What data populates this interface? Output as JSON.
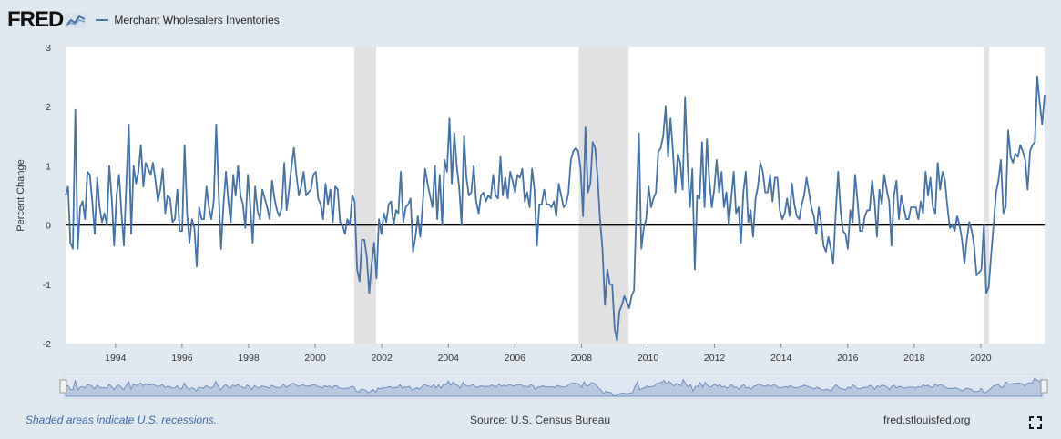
{
  "logo_text": "FRED",
  "legend_label": "Merchant Wholesalers Inventories",
  "footer": {
    "recession_note": "Shaded areas indicate U.S. recessions.",
    "source": "Source: U.S. Census Bureau",
    "site": "fred.stlouisfed.org"
  },
  "colors": {
    "series": "#4572a7",
    "recession": "#e1e1e1",
    "zero_line": "#000000",
    "navigator_fill": "#b7c8e0"
  },
  "chart_data": {
    "type": "line",
    "title": "",
    "xlabel": "",
    "ylabel": "Percent Change",
    "x_start": 1992.5,
    "x_end": 2021.917,
    "xlim": [
      1992.5,
      2021.917
    ],
    "ylim": [
      -2,
      3
    ],
    "y_ticks": [
      "-2",
      "-1",
      "0",
      "1",
      "2",
      "3"
    ],
    "x_ticks": [
      "1994",
      "1996",
      "1998",
      "2000",
      "2002",
      "2004",
      "2006",
      "2008",
      "2010",
      "2012",
      "2014",
      "2016",
      "2018",
      "2020"
    ],
    "recessions": [
      [
        2001.17,
        2001.83
      ],
      [
        2007.92,
        2009.42
      ],
      [
        2020.08,
        2020.25
      ]
    ],
    "series": [
      {
        "name": "Merchant Wholesalers Inventories",
        "values": [
          0.5,
          0.65,
          -0.3,
          -0.4,
          1.95,
          -0.4,
          0.3,
          0.4,
          0.1,
          0.9,
          0.85,
          0.4,
          -0.15,
          0.8,
          0.3,
          0.05,
          0.2,
          0.0,
          1.0,
          0.45,
          -0.35,
          0.5,
          0.85,
          0.2,
          -0.35,
          0.7,
          1.7,
          -0.15,
          1.0,
          0.7,
          0.9,
          1.35,
          0.65,
          1.05,
          0.95,
          0.85,
          1.05,
          0.75,
          0.4,
          0.6,
          0.95,
          0.2,
          0.5,
          0.45,
          0.05,
          0.1,
          0.6,
          -0.1,
          -0.1,
          1.35,
          0.2,
          -0.3,
          0.1,
          -0.05,
          -0.7,
          0.3,
          0.1,
          0.1,
          0.65,
          0.3,
          0.1,
          0.4,
          1.7,
          0.55,
          -0.4,
          0.35,
          0.9,
          0.4,
          0.05,
          0.85,
          0.5,
          1.0,
          0.5,
          0.35,
          -0.05,
          0.85,
          0.35,
          -0.3,
          0.65,
          0.25,
          0.1,
          0.6,
          0.45,
          0.3,
          0.1,
          0.75,
          0.45,
          0.25,
          0.15,
          0.3,
          1.05,
          0.25,
          0.6,
          1.0,
          1.3,
          0.85,
          0.5,
          0.65,
          0.9,
          0.5,
          0.55,
          0.6,
          0.85,
          0.9,
          0.45,
          0.35,
          0.1,
          0.7,
          0.35,
          0.6,
          0.05,
          0.65,
          0.6,
          0.05,
          0.0,
          -0.15,
          0.1,
          0.0,
          0.5,
          0.4,
          -0.75,
          -0.95,
          -0.25,
          -0.25,
          -0.55,
          -1.15,
          -0.65,
          -0.3,
          -0.9,
          0.1,
          -0.15,
          0.2,
          0.05,
          0.35,
          0.4,
          0.0,
          0.25,
          0.2,
          0.9,
          0.05,
          0.3,
          0.35,
          0.45,
          -0.45,
          -0.2,
          0.15,
          -0.2,
          0.35,
          0.95,
          0.7,
          0.5,
          0.3,
          1.0,
          0.1,
          0.85,
          0.0,
          1.1,
          0.9,
          1.8,
          0.7,
          1.55,
          1.0,
          0.65,
          0.0,
          1.5,
          0.8,
          0.5,
          0.55,
          1.0,
          0.4,
          0.2,
          0.5,
          0.55,
          0.4,
          0.5,
          0.45,
          0.85,
          0.5,
          0.45,
          1.15,
          0.5,
          0.8,
          0.45,
          0.9,
          0.75,
          0.55,
          0.85,
          0.8,
          0.95,
          0.4,
          0.55,
          0.3,
          0.95,
          0.6,
          -0.35,
          0.35,
          0.35,
          0.6,
          0.35,
          0.35,
          0.3,
          0.4,
          0.15,
          0.7,
          0.5,
          0.3,
          0.35,
          0.55,
          1.1,
          1.25,
          1.3,
          1.25,
          0.95,
          0.15,
          1.65,
          0.55,
          0.7,
          1.4,
          1.3,
          0.8,
          0.1,
          -0.4,
          -1.35,
          -0.75,
          -1.0,
          -1.0,
          -1.75,
          -1.95,
          -1.45,
          -1.35,
          -1.2,
          -1.3,
          -1.4,
          -1.2,
          -1.1,
          0.4,
          1.55,
          -0.4,
          -0.05,
          0.1,
          0.65,
          0.3,
          0.45,
          0.55,
          1.25,
          1.3,
          1.5,
          2.0,
          1.15,
          1.8,
          1.25,
          0.55,
          1.2,
          1.05,
          0.6,
          2.15,
          1.05,
          0.3,
          0.95,
          -0.75,
          0.5,
          0.45,
          1.4,
          0.3,
          1.45,
          0.75,
          0.3,
          0.6,
          1.1,
          0.55,
          0.9,
          0.3,
          0.55,
          0.0,
          0.45,
          0.9,
          0.2,
          0.3,
          -0.3,
          0.55,
          0.9,
          0.05,
          0.25,
          -0.2,
          0.45,
          0.65,
          1.05,
          0.9,
          0.55,
          0.55,
          0.85,
          0.4,
          0.8,
          0.8,
          0.25,
          0.1,
          0.2,
          0.45,
          0.15,
          0.7,
          0.35,
          0.15,
          0.1,
          0.35,
          0.5,
          0.8,
          0.55,
          0.3,
          0.15,
          -0.15,
          0.3,
          0.05,
          -0.35,
          -0.45,
          -0.2,
          -0.4,
          -0.65,
          0.2,
          0.9,
          0.25,
          -0.1,
          -0.15,
          -0.4,
          0.25,
          0.05,
          0.85,
          0.4,
          -0.1,
          -0.1,
          0.15,
          0.25,
          0.25,
          0.75,
          0.4,
          -0.2,
          0.6,
          0.35,
          0.85,
          0.6,
          0.4,
          -0.35,
          0.5,
          0.75,
          0.1,
          0.5,
          0.3,
          0.1,
          0.1,
          0.3,
          0.3,
          0.3,
          0.1,
          0.4,
          0.2,
          0.9,
          0.5,
          0.8,
          0.3,
          0.2,
          1.05,
          0.6,
          0.9,
          0.75,
          0.3,
          -0.05,
          0.0,
          -0.1,
          0.15,
          0.0,
          -0.25,
          -0.65,
          -0.25,
          0.05,
          -0.1,
          -0.35,
          -0.85,
          -0.8,
          -0.75,
          0.0,
          -1.15,
          -1.05,
          -0.5,
          0.0,
          0.55,
          0.75,
          1.1,
          0.2,
          0.3,
          1.6,
          1.15,
          1.05,
          1.2,
          1.15,
          1.35,
          1.25,
          1.1,
          0.6,
          1.25,
          1.35,
          1.4,
          2.5,
          2.05,
          1.7,
          2.2
        ]
      }
    ]
  }
}
